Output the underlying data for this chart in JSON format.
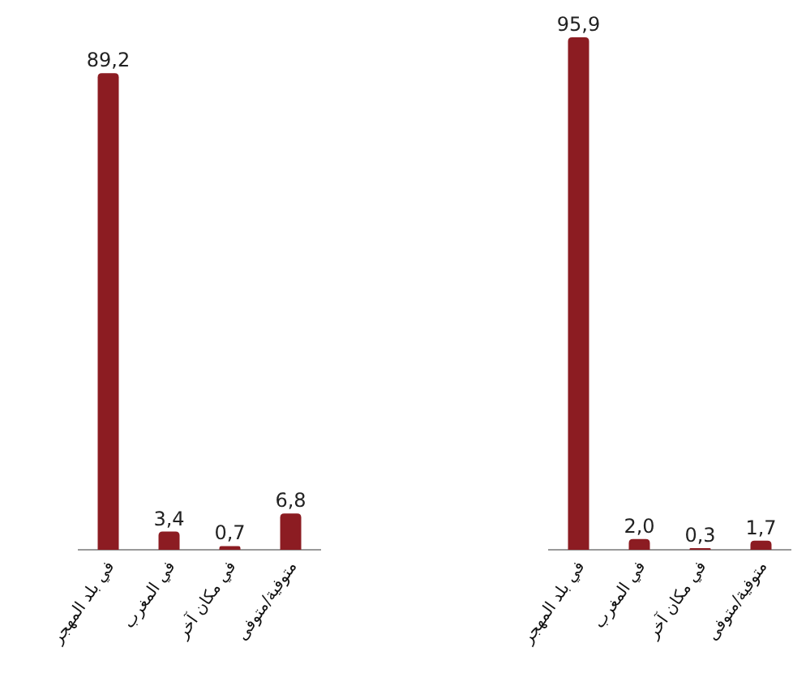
{
  "chart_data": [
    {
      "type": "bar",
      "categories": [
        "في بلد المهجر",
        "في المغرب",
        "في مكان آخر",
        "متوفية/متوفى"
      ],
      "values": [
        89.2,
        3.4,
        0.7,
        6.8
      ],
      "value_labels": [
        "89,2",
        "3,4",
        "0,7",
        "6,8"
      ],
      "color": "#8c1c22",
      "tick_labels": "x"
    },
    {
      "type": "bar",
      "categories": [
        "في بلد المهجر",
        "في المغرب",
        "في مكان آخر",
        "متوفية/متوفى"
      ],
      "values": [
        95.9,
        2.0,
        0.3,
        1.7
      ],
      "value_labels": [
        "95,9",
        "2,0",
        "0,3",
        "1,7"
      ],
      "color": "#8c1c22",
      "tick_labels": "x"
    }
  ]
}
